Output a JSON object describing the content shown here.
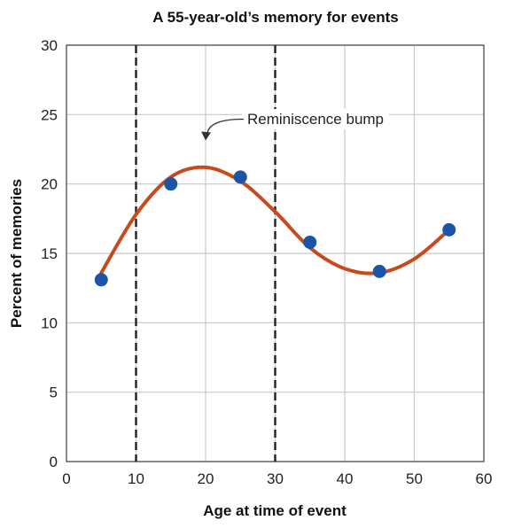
{
  "chart_data": {
    "type": "line",
    "title": "A 55-year-old’s memory for events",
    "xlabel": "Age at time of event",
    "ylabel": "Percent of memories",
    "xlim": [
      0,
      60
    ],
    "ylim": [
      0,
      30
    ],
    "x_ticks": [
      0,
      10,
      20,
      30,
      40,
      50,
      60
    ],
    "y_ticks": [
      0,
      5,
      10,
      15,
      20,
      25,
      30
    ],
    "grid": true,
    "series": [
      {
        "x": [
          5,
          15,
          25,
          35,
          45,
          55
        ],
        "y": [
          13.1,
          20.0,
          20.5,
          15.8,
          13.7,
          16.7
        ]
      }
    ],
    "trend_curve": [
      [
        5,
        13.6
      ],
      [
        10,
        17.8
      ],
      [
        15,
        20.5
      ],
      [
        20,
        21.2
      ],
      [
        25,
        20.2
      ],
      [
        30,
        18.0
      ],
      [
        35,
        15.4
      ],
      [
        40,
        13.9
      ],
      [
        45,
        13.6
      ],
      [
        50,
        14.6
      ],
      [
        55,
        16.7
      ]
    ],
    "vertical_markers": [
      10,
      30
    ],
    "annotation": {
      "text": "Reminiscence bump",
      "points_to": [
        20,
        23.2
      ]
    },
    "colors": {
      "curve": "#c8491c",
      "points": "#1a55a8",
      "grid": "#c8c8c8",
      "markers": "#222222"
    }
  }
}
